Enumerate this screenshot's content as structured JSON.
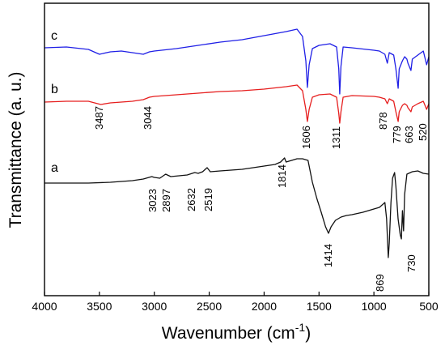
{
  "chart_data": {
    "type": "line",
    "xlabel_main": "Wavenumber (cm",
    "xlabel_sup": "-1",
    "xlabel_tail": ")",
    "ylabel": "Transmittance (a. u.)",
    "xlim": [
      4000,
      500
    ],
    "x_reversed": true,
    "x_ticks": [
      "4000",
      "3500",
      "3000",
      "2500",
      "2000",
      "1500",
      "1000",
      "500"
    ],
    "series": [
      {
        "name": "c",
        "color": "#1f1fe6",
        "points": [
          [
            4000,
            59
          ],
          [
            3800,
            58
          ],
          [
            3600,
            61
          ],
          [
            3500,
            67
          ],
          [
            3400,
            64
          ],
          [
            3300,
            63
          ],
          [
            3200,
            65
          ],
          [
            3100,
            67
          ],
          [
            3044,
            64
          ],
          [
            3000,
            63
          ],
          [
            2800,
            60
          ],
          [
            2600,
            56
          ],
          [
            2400,
            52
          ],
          [
            2200,
            49
          ],
          [
            2000,
            44
          ],
          [
            1800,
            39
          ],
          [
            1700,
            36
          ],
          [
            1650,
            45
          ],
          [
            1620,
            75
          ],
          [
            1606,
            108
          ],
          [
            1590,
            80
          ],
          [
            1560,
            60
          ],
          [
            1500,
            56
          ],
          [
            1400,
            54
          ],
          [
            1340,
            58
          ],
          [
            1320,
            85
          ],
          [
            1311,
            116
          ],
          [
            1300,
            82
          ],
          [
            1280,
            58
          ],
          [
            1200,
            59
          ],
          [
            1000,
            62
          ],
          [
            950,
            63
          ],
          [
            900,
            67
          ],
          [
            878,
            78
          ],
          [
            860,
            65
          ],
          [
            820,
            68
          ],
          [
            800,
            85
          ],
          [
            779,
            109
          ],
          [
            770,
            85
          ],
          [
            740,
            75
          ],
          [
            720,
            70
          ],
          [
            700,
            73
          ],
          [
            690,
            78
          ],
          [
            663,
            87
          ],
          [
            650,
            73
          ],
          [
            600,
            68
          ],
          [
            550,
            63
          ],
          [
            520,
            80
          ],
          [
            500,
            70
          ]
        ]
      },
      {
        "name": "b",
        "color": "#e61e1e",
        "points": [
          [
            4000,
            126
          ],
          [
            3800,
            125
          ],
          [
            3600,
            125
          ],
          [
            3487,
            129
          ],
          [
            3400,
            127
          ],
          [
            3300,
            126
          ],
          [
            3200,
            125
          ],
          [
            3100,
            123
          ],
          [
            3044,
            120
          ],
          [
            3000,
            119
          ],
          [
            2800,
            117
          ],
          [
            2600,
            115
          ],
          [
            2400,
            113
          ],
          [
            2200,
            112
          ],
          [
            2000,
            110
          ],
          [
            1800,
            107
          ],
          [
            1700,
            105
          ],
          [
            1650,
            112
          ],
          [
            1620,
            135
          ],
          [
            1606,
            150
          ],
          [
            1590,
            135
          ],
          [
            1560,
            120
          ],
          [
            1500,
            117
          ],
          [
            1400,
            116
          ],
          [
            1340,
            120
          ],
          [
            1320,
            140
          ],
          [
            1311,
            152
          ],
          [
            1300,
            138
          ],
          [
            1280,
            120
          ],
          [
            1200,
            118
          ],
          [
            1000,
            119
          ],
          [
            950,
            120
          ],
          [
            900,
            122
          ],
          [
            878,
            128
          ],
          [
            860,
            122
          ],
          [
            820,
            125
          ],
          [
            800,
            138
          ],
          [
            779,
            150
          ],
          [
            770,
            138
          ],
          [
            740,
            130
          ],
          [
            720,
            128
          ],
          [
            700,
            130
          ],
          [
            690,
            133
          ],
          [
            663,
            138
          ],
          [
            650,
            132
          ],
          [
            600,
            128
          ],
          [
            550,
            125
          ],
          [
            520,
            135
          ],
          [
            500,
            128
          ]
        ]
      },
      {
        "name": "a",
        "color": "#111111",
        "points": [
          [
            4000,
            226
          ],
          [
            3800,
            226
          ],
          [
            3600,
            226
          ],
          [
            3400,
            225
          ],
          [
            3200,
            223
          ],
          [
            3100,
            221
          ],
          [
            3023,
            218
          ],
          [
            3000,
            219
          ],
          [
            2950,
            220
          ],
          [
            2897,
            215
          ],
          [
            2850,
            218
          ],
          [
            2700,
            216
          ],
          [
            2632,
            213
          ],
          [
            2600,
            214
          ],
          [
            2560,
            212
          ],
          [
            2519,
            207
          ],
          [
            2490,
            212
          ],
          [
            2400,
            211
          ],
          [
            2300,
            210
          ],
          [
            2200,
            209
          ],
          [
            2100,
            207
          ],
          [
            2000,
            205
          ],
          [
            1900,
            203
          ],
          [
            1850,
            200
          ],
          [
            1814,
            195
          ],
          [
            1800,
            200
          ],
          [
            1750,
            198
          ],
          [
            1700,
            196
          ],
          [
            1650,
            196
          ],
          [
            1600,
            198
          ],
          [
            1560,
            225
          ],
          [
            1520,
            245
          ],
          [
            1480,
            262
          ],
          [
            1440,
            280
          ],
          [
            1414,
            288
          ],
          [
            1390,
            280
          ],
          [
            1350,
            272
          ],
          [
            1300,
            268
          ],
          [
            1250,
            266
          ],
          [
            1200,
            265
          ],
          [
            1100,
            262
          ],
          [
            1000,
            258
          ],
          [
            950,
            256
          ],
          [
            900,
            250
          ],
          [
            885,
            270
          ],
          [
            869,
            318
          ],
          [
            860,
            300
          ],
          [
            845,
            250
          ],
          [
            830,
            220
          ],
          [
            812,
            213
          ],
          [
            800,
            230
          ],
          [
            780,
            270
          ],
          [
            760,
            290
          ],
          [
            750,
            295
          ],
          [
            740,
            260
          ],
          [
            730,
            285
          ],
          [
            720,
            240
          ],
          [
            700,
            215
          ],
          [
            650,
            212
          ],
          [
            600,
            211
          ],
          [
            550,
            214
          ],
          [
            500,
            215
          ]
        ]
      }
    ],
    "curve_labels": [
      "c",
      "b",
      "a"
    ],
    "peak_labels": {
      "c_b": [
        "3487",
        "3044",
        "1606",
        "1311",
        "878",
        "779",
        "663",
        "520"
      ],
      "a": [
        "3023",
        "2897",
        "2632",
        "2519",
        "1814",
        "1414",
        "869",
        "730"
      ]
    }
  }
}
